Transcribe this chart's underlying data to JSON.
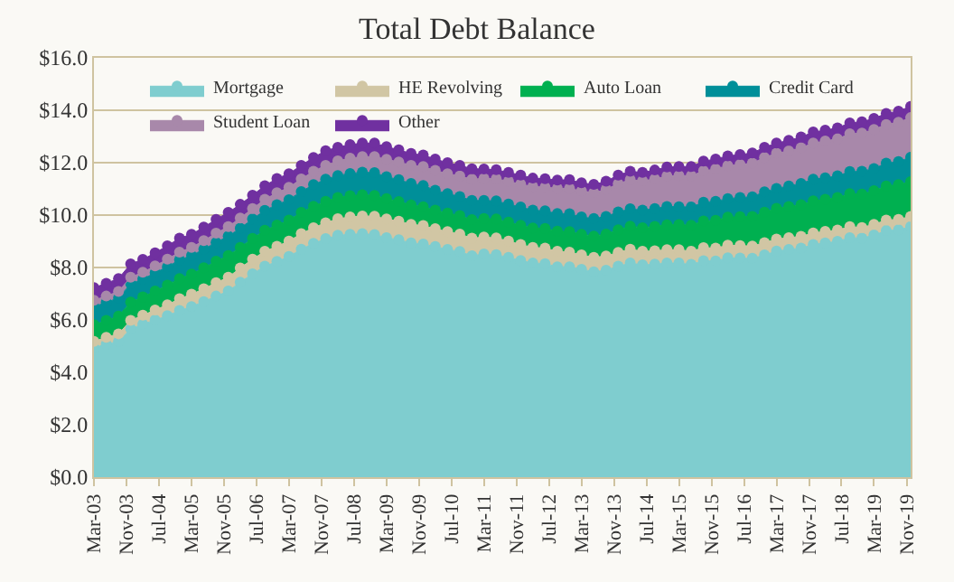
{
  "chart_data": {
    "type": "area",
    "stacked": true,
    "title": "Total Debt Balance",
    "x": [
      "2003-03",
      "2003-06",
      "2003-09",
      "2003-12",
      "2004-03",
      "2004-06",
      "2004-09",
      "2004-12",
      "2005-03",
      "2005-06",
      "2005-09",
      "2005-12",
      "2006-03",
      "2006-06",
      "2006-09",
      "2006-12",
      "2007-03",
      "2007-06",
      "2007-09",
      "2007-12",
      "2008-03",
      "2008-06",
      "2008-09",
      "2008-12",
      "2009-03",
      "2009-06",
      "2009-09",
      "2009-12",
      "2010-03",
      "2010-06",
      "2010-09",
      "2010-12",
      "2011-03",
      "2011-06",
      "2011-09",
      "2011-12",
      "2012-03",
      "2012-06",
      "2012-09",
      "2012-12",
      "2013-03",
      "2013-06",
      "2013-09",
      "2013-12",
      "2014-03",
      "2014-06",
      "2014-09",
      "2014-12",
      "2015-03",
      "2015-06",
      "2015-09",
      "2015-12",
      "2016-03",
      "2016-06",
      "2016-09",
      "2016-12",
      "2017-03",
      "2017-06",
      "2017-09",
      "2017-12",
      "2018-03",
      "2018-06",
      "2018-09",
      "2018-12",
      "2019-03",
      "2019-06",
      "2019-09",
      "2019-12"
    ],
    "series": [
      {
        "name": "Mortgage",
        "color": "#7fcdcf",
        "values": [
          4.94,
          5.08,
          5.18,
          5.66,
          5.84,
          6.0,
          6.16,
          6.36,
          6.51,
          6.7,
          6.91,
          7.1,
          7.44,
          7.76,
          8.05,
          8.23,
          8.42,
          8.7,
          8.92,
          9.1,
          9.23,
          9.27,
          9.29,
          9.26,
          9.14,
          9.06,
          8.94,
          8.9,
          8.8,
          8.69,
          8.61,
          8.45,
          8.52,
          8.49,
          8.39,
          8.27,
          8.17,
          8.15,
          8.03,
          8.03,
          7.93,
          7.84,
          7.9,
          8.05,
          8.17,
          8.1,
          8.13,
          8.17,
          8.17,
          8.12,
          8.26,
          8.25,
          8.37,
          8.36,
          8.35,
          8.48,
          8.63,
          8.69,
          8.74,
          8.88,
          8.94,
          9.0,
          9.14,
          9.12,
          9.24,
          9.41,
          9.44,
          9.56
        ]
      },
      {
        "name": "HE Revolving",
        "color": "#d1c6a4",
        "values": [
          0.24,
          0.26,
          0.29,
          0.32,
          0.34,
          0.38,
          0.42,
          0.45,
          0.47,
          0.49,
          0.51,
          0.53,
          0.54,
          0.56,
          0.57,
          0.58,
          0.59,
          0.59,
          0.6,
          0.61,
          0.63,
          0.66,
          0.68,
          0.7,
          0.71,
          0.71,
          0.71,
          0.7,
          0.68,
          0.68,
          0.67,
          0.67,
          0.64,
          0.64,
          0.62,
          0.61,
          0.6,
          0.59,
          0.59,
          0.56,
          0.55,
          0.55,
          0.54,
          0.53,
          0.53,
          0.52,
          0.51,
          0.51,
          0.51,
          0.5,
          0.5,
          0.49,
          0.48,
          0.48,
          0.47,
          0.47,
          0.46,
          0.45,
          0.45,
          0.44,
          0.44,
          0.43,
          0.42,
          0.41,
          0.41,
          0.4,
          0.4,
          0.39
        ]
      },
      {
        "name": "Auto Loan",
        "color": "#00b050",
        "values": [
          0.64,
          0.64,
          0.68,
          0.7,
          0.7,
          0.72,
          0.75,
          0.77,
          0.77,
          0.8,
          0.82,
          0.83,
          0.79,
          0.79,
          0.8,
          0.81,
          0.8,
          0.81,
          0.82,
          0.82,
          0.81,
          0.81,
          0.81,
          0.79,
          0.78,
          0.75,
          0.74,
          0.72,
          0.71,
          0.71,
          0.7,
          0.71,
          0.71,
          0.72,
          0.72,
          0.73,
          0.74,
          0.75,
          0.77,
          0.78,
          0.79,
          0.81,
          0.84,
          0.86,
          0.88,
          0.9,
          0.93,
          0.95,
          0.96,
          0.99,
          1.02,
          1.06,
          1.07,
          1.1,
          1.13,
          1.16,
          1.17,
          1.19,
          1.21,
          1.22,
          1.22,
          1.24,
          1.26,
          1.27,
          1.28,
          1.3,
          1.32,
          1.33
        ]
      },
      {
        "name": "Credit Card",
        "color": "#008f99",
        "values": [
          0.69,
          0.69,
          0.69,
          0.7,
          0.68,
          0.7,
          0.7,
          0.71,
          0.71,
          0.71,
          0.72,
          0.74,
          0.73,
          0.74,
          0.76,
          0.78,
          0.78,
          0.8,
          0.82,
          0.84,
          0.84,
          0.85,
          0.86,
          0.87,
          0.84,
          0.83,
          0.82,
          0.81,
          0.76,
          0.74,
          0.73,
          0.73,
          0.69,
          0.69,
          0.69,
          0.7,
          0.68,
          0.67,
          0.67,
          0.68,
          0.66,
          0.67,
          0.67,
          0.68,
          0.66,
          0.67,
          0.68,
          0.7,
          0.68,
          0.7,
          0.71,
          0.73,
          0.71,
          0.73,
          0.75,
          0.78,
          0.76,
          0.78,
          0.81,
          0.83,
          0.82,
          0.83,
          0.84,
          0.87,
          0.85,
          0.87,
          0.88,
          0.93
        ]
      },
      {
        "name": "Student Loan",
        "color": "#a888aa",
        "values": [
          0.24,
          0.24,
          0.25,
          0.25,
          0.26,
          0.26,
          0.29,
          0.3,
          0.31,
          0.33,
          0.35,
          0.36,
          0.39,
          0.4,
          0.42,
          0.45,
          0.47,
          0.48,
          0.51,
          0.53,
          0.56,
          0.58,
          0.59,
          0.61,
          0.66,
          0.68,
          0.69,
          0.72,
          0.76,
          0.76,
          0.78,
          0.81,
          0.84,
          0.85,
          0.87,
          0.87,
          0.9,
          0.91,
          0.96,
          0.97,
          0.99,
          0.99,
          1.03,
          1.08,
          1.11,
          1.12,
          1.13,
          1.16,
          1.19,
          1.19,
          1.2,
          1.23,
          1.26,
          1.26,
          1.28,
          1.31,
          1.34,
          1.34,
          1.36,
          1.38,
          1.41,
          1.41,
          1.44,
          1.46,
          1.49,
          1.48,
          1.5,
          1.51
        ]
      },
      {
        "name": "Other",
        "color": "#7030a0",
        "values": [
          0.48,
          0.49,
          0.49,
          0.51,
          0.49,
          0.5,
          0.51,
          0.53,
          0.5,
          0.51,
          0.53,
          0.54,
          0.52,
          0.51,
          0.52,
          0.55,
          0.52,
          0.52,
          0.53,
          0.56,
          0.52,
          0.52,
          0.52,
          0.52,
          0.48,
          0.46,
          0.45,
          0.44,
          0.43,
          0.42,
          0.41,
          0.4,
          0.36,
          0.34,
          0.34,
          0.35,
          0.32,
          0.32,
          0.32,
          0.33,
          0.31,
          0.31,
          0.31,
          0.33,
          0.32,
          0.32,
          0.34,
          0.35,
          0.34,
          0.35,
          0.37,
          0.38,
          0.37,
          0.38,
          0.39,
          0.39,
          0.39,
          0.4,
          0.41,
          0.42,
          0.41,
          0.42,
          0.42,
          0.43,
          0.42,
          0.42,
          0.43,
          0.43
        ]
      }
    ],
    "xlim": [
      "2003-03",
      "2019-12"
    ],
    "xticks": [
      {
        "value": "2003-03",
        "label": "Mar-03"
      },
      {
        "value": "2003-11",
        "label": "Nov-03"
      },
      {
        "value": "2004-07",
        "label": "Jul-04"
      },
      {
        "value": "2005-03",
        "label": "Mar-05"
      },
      {
        "value": "2005-11",
        "label": "Nov-05"
      },
      {
        "value": "2006-07",
        "label": "Jul-06"
      },
      {
        "value": "2007-03",
        "label": "Mar-07"
      },
      {
        "value": "2007-11",
        "label": "Nov-07"
      },
      {
        "value": "2008-07",
        "label": "Jul-08"
      },
      {
        "value": "2009-03",
        "label": "Mar-09"
      },
      {
        "value": "2009-11",
        "label": "Nov-09"
      },
      {
        "value": "2010-07",
        "label": "Jul-10"
      },
      {
        "value": "2011-03",
        "label": "Mar-11"
      },
      {
        "value": "2011-11",
        "label": "Nov-11"
      },
      {
        "value": "2012-07",
        "label": "Jul-12"
      },
      {
        "value": "2013-03",
        "label": "Mar-13"
      },
      {
        "value": "2013-11",
        "label": "Nov-13"
      },
      {
        "value": "2014-07",
        "label": "Jul-14"
      },
      {
        "value": "2015-03",
        "label": "Mar-15"
      },
      {
        "value": "2015-11",
        "label": "Nov-15"
      },
      {
        "value": "2016-07",
        "label": "Jul-16"
      },
      {
        "value": "2017-03",
        "label": "Mar-17"
      },
      {
        "value": "2017-11",
        "label": "Nov-17"
      },
      {
        "value": "2018-07",
        "label": "Jul-18"
      },
      {
        "value": "2019-03",
        "label": "Mar-19"
      },
      {
        "value": "2019-11",
        "label": "Nov-19"
      }
    ],
    "ylim": [
      0,
      16
    ],
    "yticks": [
      {
        "value": 0,
        "label": "$0.0"
      },
      {
        "value": 2,
        "label": "$2.0"
      },
      {
        "value": 4,
        "label": "$4.0"
      },
      {
        "value": 6,
        "label": "$6.0"
      },
      {
        "value": 8,
        "label": "$8.0"
      },
      {
        "value": 10,
        "label": "$10.0"
      },
      {
        "value": 12,
        "label": "$12.0"
      },
      {
        "value": 14,
        "label": "$14.0"
      },
      {
        "value": 16,
        "label": "$16.0"
      }
    ],
    "grid": "y",
    "legend": "top",
    "marker": "circle"
  }
}
